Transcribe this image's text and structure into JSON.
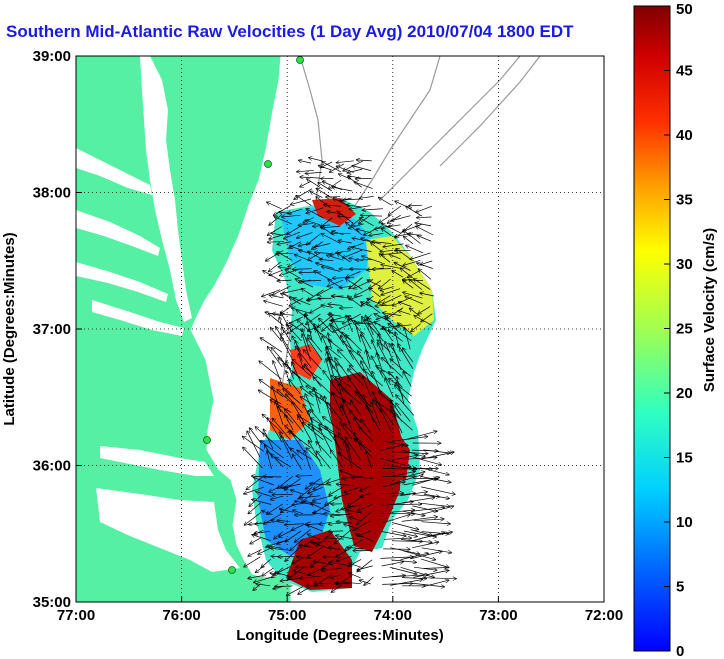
{
  "title": "Southern Mid-Atlantic Raw Velocities (1 Day Avg) 2010/07/04 1800 EDT",
  "x_axis": {
    "label": "Longitude (Degrees:Minutes)",
    "ticks": [
      "77:00",
      "76:00",
      "75:00",
      "74:00",
      "73:00",
      "72:00"
    ]
  },
  "y_axis": {
    "label": "Latitude (Degrees:Minutes)",
    "ticks": [
      "39:00",
      "38:00",
      "37:00",
      "36:00",
      "35:00"
    ]
  },
  "colorbar": {
    "label": "Surface Velocity (cm/s)",
    "min": 0,
    "max": 50,
    "ticks": [
      "50",
      "45",
      "40",
      "35",
      "30",
      "25",
      "20",
      "15",
      "10",
      "5",
      "0"
    ]
  },
  "colors": {
    "land": "#55f0a4",
    "water": "#ffffff",
    "bathymetry": "#9a9a9a",
    "station": "#2ee04a",
    "title": "#1a1ae6"
  },
  "extent": {
    "lon": [
      -77,
      -72
    ],
    "lat": [
      35,
      39
    ]
  }
}
